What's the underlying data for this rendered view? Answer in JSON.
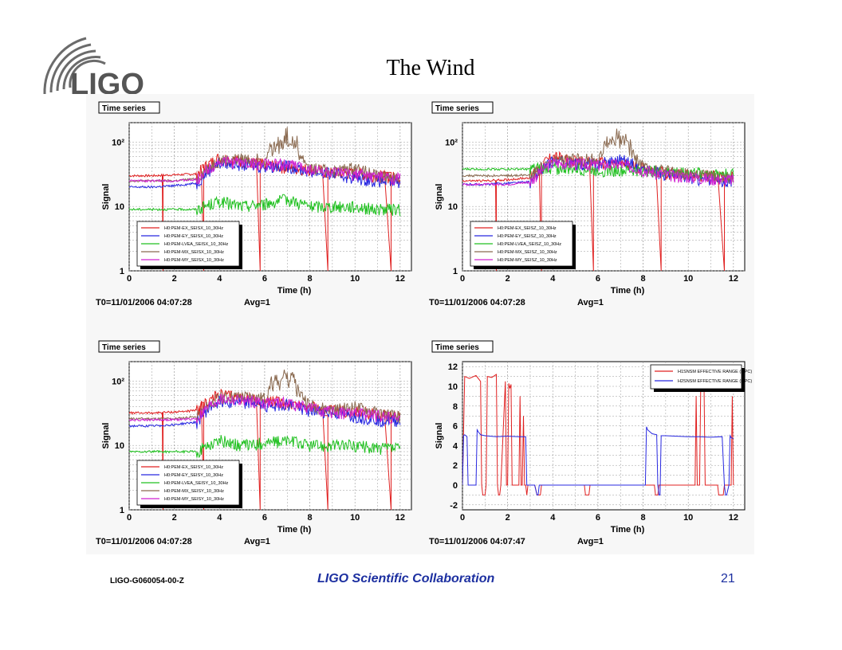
{
  "slide": {
    "title": "The Wind",
    "logo_text": "LIGO",
    "footer_left": "LIGO-G060054-00-Z",
    "footer_center": "LIGO Scientific Collaboration",
    "footer_right": "21",
    "colors": {
      "footer_text": "#1c2fa0",
      "logo_gray": "#6b6b6b"
    }
  },
  "chart_data": [
    {
      "type": "line",
      "box_label": "Time series",
      "xlabel": "Time (h)",
      "ylabel": "Signal",
      "yscale": "log",
      "xlim": [
        0,
        12.5
      ],
      "ylim": [
        1,
        200
      ],
      "xticks": [
        "0",
        "2",
        "4",
        "6",
        "8",
        "10",
        "12"
      ],
      "yticks": [
        "1",
        "10",
        "10²"
      ],
      "legend_position": "bottom-left",
      "footer_t0": "T0=11/01/2006 04:07:28",
      "footer_avg": "Avg=1",
      "series": [
        {
          "name": "H0:PEM-EX_SEISX_10_30Hz",
          "color": "#e02020",
          "base": [
            30,
            30,
            31,
            32,
            58,
            50,
            45,
            40,
            38,
            33,
            33,
            30,
            28
          ],
          "dips": [
            1.5,
            3.3,
            5.8,
            8.8,
            11.6
          ]
        },
        {
          "name": "H0:PEM-EY_SEISX_10_30Hz",
          "color": "#2828e0",
          "base": [
            20,
            20,
            21,
            23,
            48,
            45,
            42,
            43,
            35,
            32,
            28,
            25,
            24
          ],
          "dips": []
        },
        {
          "name": "H0:PEM-LVEA_SEISX_10_30Hz",
          "color": "#20c020",
          "base": [
            9,
            9,
            9,
            9,
            12,
            10,
            11,
            13,
            10,
            10,
            10,
            9,
            9
          ],
          "dips": []
        },
        {
          "name": "H0:PEM-MX_SEISX_10_30Hz",
          "color": "#8a6a50",
          "base": [
            25,
            25,
            25,
            27,
            52,
            55,
            55,
            90,
            40,
            35,
            40,
            30,
            28
          ],
          "dips": []
        },
        {
          "name": "H0:PEM-MY_SEISX_10_30Hz",
          "color": "#d020d0",
          "base": [
            25,
            25,
            25,
            26,
            50,
            48,
            45,
            46,
            38,
            33,
            32,
            29,
            27
          ],
          "dips": []
        }
      ]
    },
    {
      "type": "line",
      "box_label": "Time series",
      "xlabel": "Time (h)",
      "ylabel": "Signal",
      "yscale": "log",
      "xlim": [
        0,
        12.5
      ],
      "ylim": [
        1,
        200
      ],
      "xticks": [
        "0",
        "2",
        "4",
        "6",
        "8",
        "10",
        "12"
      ],
      "yticks": [
        "1",
        "10",
        "10²"
      ],
      "legend_position": "bottom-left",
      "footer_t0": "T0=11/01/2006 04:07:28",
      "footer_avg": "Avg=1",
      "series": [
        {
          "name": "H0:PEM-EX_SEISZ_10_30Hz",
          "color": "#e02020",
          "base": [
            25,
            25,
            26,
            28,
            60,
            50,
            48,
            45,
            40,
            33,
            32,
            30,
            28
          ],
          "dips": [
            1.5,
            3.5,
            5.8,
            8.8,
            11.6
          ]
        },
        {
          "name": "H0:PEM-EY_SEISZ_10_30Hz",
          "color": "#2828e0",
          "base": [
            22,
            22,
            23,
            24,
            50,
            46,
            45,
            55,
            38,
            32,
            28,
            26,
            25
          ],
          "dips": []
        },
        {
          "name": "H0:PEM-LVEA_SEISZ_10_30Hz",
          "color": "#20c020",
          "base": [
            38,
            38,
            38,
            38,
            40,
            38,
            37,
            36,
            36,
            35,
            34,
            33,
            32
          ],
          "dips": []
        },
        {
          "name": "H0:PEM-MX_SEISZ_10_30Hz",
          "color": "#8a6a50",
          "base": [
            30,
            30,
            30,
            31,
            50,
            55,
            55,
            95,
            42,
            36,
            32,
            30,
            28
          ],
          "dips": []
        },
        {
          "name": "H0:PEM-MY_SEISZ_10_30Hz",
          "color": "#d020d0",
          "base": [
            22,
            22,
            22,
            24,
            48,
            46,
            44,
            45,
            37,
            31,
            29,
            27,
            26
          ],
          "dips": []
        }
      ]
    },
    {
      "type": "line",
      "box_label": "Time series",
      "xlabel": "Time (h)",
      "ylabel": "Signal",
      "yscale": "log",
      "xlim": [
        0,
        12.5
      ],
      "ylim": [
        1,
        200
      ],
      "xticks": [
        "0",
        "2",
        "4",
        "6",
        "8",
        "10",
        "12"
      ],
      "yticks": [
        "1",
        "10",
        "10²"
      ],
      "legend_position": "bottom-left",
      "footer_t0": "T0=11/01/2006 04:07:28",
      "footer_avg": "Avg=1",
      "series": [
        {
          "name": "H0:PEM-EX_SEISY_10_30Hz",
          "color": "#e02020",
          "base": [
            32,
            32,
            33,
            35,
            62,
            55,
            50,
            45,
            40,
            34,
            34,
            31,
            29
          ],
          "dips": [
            1.5,
            3.3,
            5.8,
            8.8,
            11.6
          ]
        },
        {
          "name": "H0:PEM-EY_SEISY_10_30Hz",
          "color": "#2828e0",
          "base": [
            20,
            20,
            21,
            23,
            50,
            48,
            42,
            44,
            35,
            32,
            28,
            25,
            24
          ],
          "dips": []
        },
        {
          "name": "H0:PEM-LVEA_SEISY_10_30Hz",
          "color": "#20c020",
          "base": [
            8,
            8,
            8,
            8,
            12,
            10,
            11,
            12,
            10,
            10,
            10,
            9,
            9
          ],
          "dips": []
        },
        {
          "name": "H0:PEM-MX_SEISY_10_30Hz",
          "color": "#8a6a50",
          "base": [
            26,
            26,
            26,
            28,
            55,
            58,
            55,
            95,
            42,
            36,
            40,
            32,
            28
          ],
          "dips": []
        },
        {
          "name": "H0:PEM-MY_SEISY_10_30Hz",
          "color": "#d020d0",
          "base": [
            25,
            25,
            25,
            26,
            52,
            50,
            46,
            46,
            38,
            33,
            32,
            29,
            27
          ],
          "dips": []
        }
      ]
    },
    {
      "type": "line",
      "box_label": "Time series",
      "xlabel": "Time (h)",
      "ylabel": "Signal",
      "yscale": "linear",
      "xlim": [
        0,
        12.5
      ],
      "ylim": [
        -2.5,
        12.5
      ],
      "xticks": [
        "0",
        "2",
        "4",
        "6",
        "8",
        "10",
        "12"
      ],
      "yticks": [
        "-2",
        "0",
        "2",
        "4",
        "6",
        "8",
        "10",
        "12"
      ],
      "legend_position": "top-right",
      "footer_t0": "T0=11/01/2006 04:07:47",
      "footer_avg": "Avg=1",
      "series": [
        {
          "name": "H1SNSM EFFECTIVE RANGE (MPC)",
          "color": "#e02020",
          "x": [
            0,
            0.1,
            0.3,
            0.6,
            0.8,
            0.85,
            0.9,
            1.0,
            1.05,
            1.1,
            1.3,
            1.5,
            1.55,
            1.6,
            1.65,
            1.7,
            1.9,
            1.95,
            2.0,
            2.05,
            2.1,
            2.15,
            2.2,
            2.5,
            2.55,
            2.6,
            2.65,
            2.7,
            2.75,
            2.8,
            2.85,
            2.9,
            3.0,
            3.2,
            3.3,
            3.35,
            3.45,
            3.5,
            5.4,
            5.45,
            5.5,
            5.6,
            5.65,
            5.7,
            8.5,
            8.55,
            8.6,
            8.65,
            8.7,
            10.3,
            10.35,
            10.4,
            10.5,
            10.55,
            10.6,
            10.7,
            10.75,
            10.8,
            11.0,
            11.05,
            11.1,
            11.3,
            11.35,
            11.4,
            11.5,
            11.55,
            11.6,
            11.7,
            11.75,
            11.8,
            11.9,
            11.95,
            12.0
          ],
          "y": [
            0,
            11,
            10.8,
            11.1,
            10.5,
            0,
            -1,
            -1,
            0,
            11,
            10.9,
            11.2,
            0,
            -1,
            -1,
            0,
            10.5,
            0,
            0,
            10.3,
            9.8,
            10.2,
            0,
            0,
            9,
            0,
            0,
            7,
            0,
            0,
            -1,
            0,
            0,
            0,
            -1,
            -1,
            -1,
            0,
            0,
            -1,
            -1,
            -1,
            0,
            0,
            0,
            -1,
            -1,
            -1,
            0,
            0,
            9,
            0,
            0,
            9.8,
            9.5,
            10.0,
            0,
            0,
            0,
            0,
            0,
            0,
            -1,
            -1,
            -1,
            -1,
            0,
            0,
            0,
            0,
            0,
            9,
            0
          ]
        },
        {
          "name": "H2SNSM EFFECTIVE RANGE (MPC)",
          "color": "#2828e0",
          "x": [
            0,
            0.05,
            0.1,
            0.15,
            0.2,
            0.25,
            0.6,
            0.65,
            0.7,
            0.8,
            1.0,
            1.5,
            2.0,
            2.5,
            2.8,
            2.85,
            2.9,
            3.0,
            3.2,
            3.3,
            3.35,
            3.4,
            8.1,
            8.15,
            8.2,
            8.4,
            8.6,
            8.65,
            8.7,
            8.75,
            8.8,
            9.0,
            9.5,
            10.0,
            10.5,
            11.0,
            11.5,
            11.6,
            11.65,
            11.7,
            11.8,
            11.85,
            11.9,
            12.0
          ],
          "y": [
            0,
            5,
            5.1,
            5,
            4.9,
            0,
            0,
            5.6,
            5.4,
            5.1,
            5.0,
            4.9,
            4.95,
            4.9,
            4.9,
            0,
            0,
            0,
            0,
            -1,
            -1,
            0,
            0,
            5.9,
            5.6,
            5.2,
            5.1,
            0,
            -1,
            -1,
            5,
            5.0,
            4.95,
            4.9,
            4.9,
            4.85,
            4.9,
            0,
            -1,
            -1,
            0,
            5,
            4.8,
            4.7
          ]
        }
      ]
    }
  ]
}
